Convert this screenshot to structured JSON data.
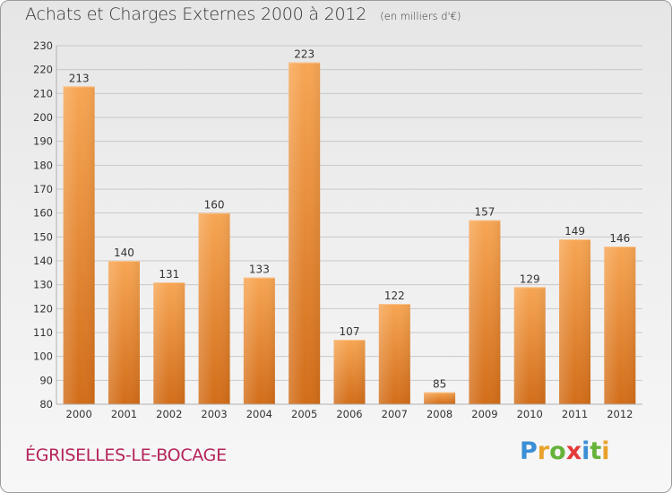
{
  "header": {
    "title": "Achats et Charges Externes 2000 à 2012",
    "unit": "(en milliers d'€)"
  },
  "footer": {
    "commune": "ÉGRISELLES-LE-BOCAGE",
    "logo_letters": [
      "P",
      "r",
      "o",
      "x",
      "i",
      "t",
      "i"
    ],
    "logo_colors": [
      "#3a8fd6",
      "#e8a22a",
      "#66b33a",
      "#e23b3b",
      "#3a8fd6",
      "#66b33a",
      "#e8a22a"
    ]
  },
  "colors": {
    "bar_light": "#f7a654",
    "bar_dark": "#d26d19",
    "grid": "#c8c8c8",
    "axis_text": "#333333"
  },
  "chart_data": {
    "type": "bar",
    "title": "Achats et Charges Externes 2000 à 2012",
    "subtitle": "(en milliers d'€)",
    "categories": [
      "2000",
      "2001",
      "2002",
      "2003",
      "2004",
      "2005",
      "2006",
      "2007",
      "2008",
      "2009",
      "2010",
      "2011",
      "2012"
    ],
    "values": [
      213,
      140,
      131,
      160,
      133,
      223,
      107,
      122,
      85,
      157,
      129,
      149,
      146
    ],
    "ylim": [
      80,
      230
    ],
    "yticks": [
      80,
      90,
      100,
      110,
      120,
      130,
      140,
      150,
      160,
      170,
      180,
      190,
      200,
      210,
      220,
      230
    ],
    "grid": true,
    "xlabel": "",
    "ylabel": ""
  }
}
